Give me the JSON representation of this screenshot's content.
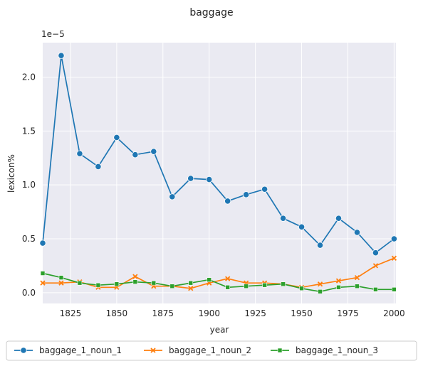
{
  "chart_data": {
    "type": "line",
    "title": "baggage",
    "xlabel": "year",
    "ylabel": "lexicon%",
    "y_multiplier_label": "1e−5",
    "xlim": [
      1810,
      2001
    ],
    "ylim": [
      -0.1,
      2.32
    ],
    "x_ticks": [
      1825,
      1850,
      1875,
      1900,
      1925,
      1950,
      1975,
      2000
    ],
    "x_tick_labels": [
      "1825",
      "1850",
      "1875",
      "1900",
      "1925",
      "1950",
      "1975",
      "2000"
    ],
    "y_ticks": [
      0.0,
      0.5,
      1.0,
      1.5,
      2.0
    ],
    "y_tick_labels": [
      "0.0",
      "0.5",
      "1.0",
      "1.5",
      "2.0"
    ],
    "grid": true,
    "legend_position": "bottom-center",
    "x": [
      1810,
      1820,
      1830,
      1840,
      1850,
      1860,
      1870,
      1880,
      1890,
      1900,
      1910,
      1920,
      1930,
      1940,
      1950,
      1960,
      1970,
      1980,
      1990,
      2000
    ],
    "series": [
      {
        "name": "baggage_1_noun_1",
        "color": "#1f77b4",
        "marker": "circle",
        "values": [
          0.46,
          2.2,
          1.29,
          1.17,
          1.44,
          1.28,
          1.31,
          0.89,
          1.06,
          1.05,
          0.85,
          0.91,
          0.96,
          0.69,
          0.61,
          0.44,
          0.69,
          0.56,
          0.37,
          0.5
        ]
      },
      {
        "name": "baggage_1_noun_2",
        "color": "#ff7f0e",
        "marker": "x",
        "values": [
          0.09,
          0.09,
          0.1,
          0.05,
          0.05,
          0.15,
          0.06,
          0.06,
          0.04,
          0.09,
          0.13,
          0.09,
          0.09,
          0.08,
          0.05,
          0.08,
          0.11,
          0.14,
          0.25,
          0.32
        ]
      },
      {
        "name": "baggage_1_noun_3",
        "color": "#2ca02c",
        "marker": "square",
        "values": [
          0.18,
          0.14,
          0.09,
          0.07,
          0.08,
          0.1,
          0.09,
          0.06,
          0.09,
          0.12,
          0.05,
          0.06,
          0.07,
          0.08,
          0.04,
          0.01,
          0.05,
          0.06,
          0.03,
          0.03
        ]
      }
    ]
  }
}
